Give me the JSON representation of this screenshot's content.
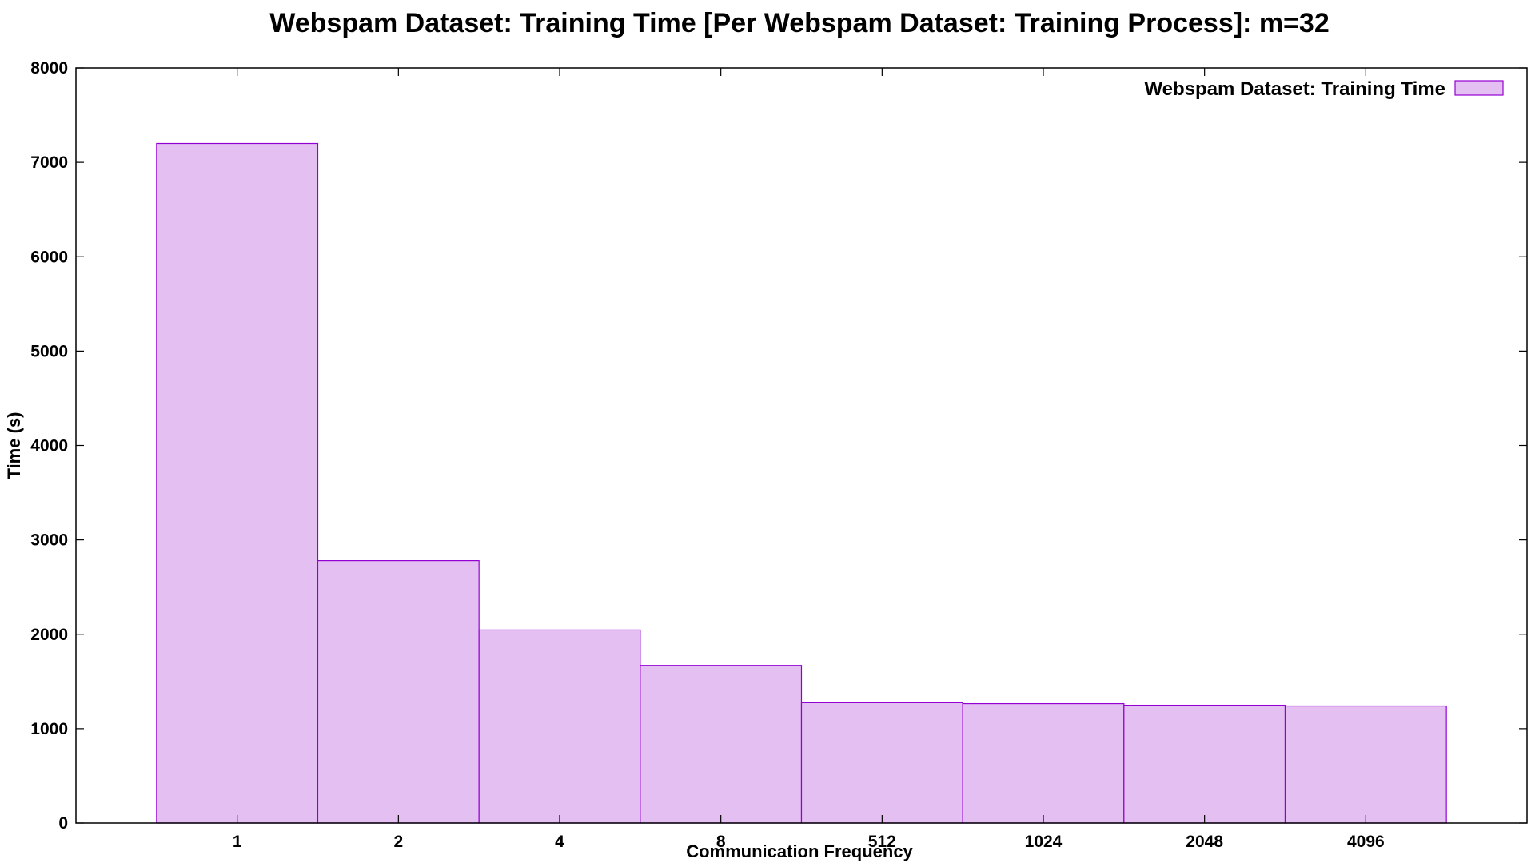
{
  "chart_data": {
    "type": "bar",
    "title": "Webspam Dataset: Training Time [Per Webspam Dataset: Training Process]: m=32",
    "xlabel": "Communication Frequency",
    "ylabel": "Time (s)",
    "categories": [
      "1",
      "2",
      "4",
      "8",
      "512",
      "1024",
      "2048",
      "4096"
    ],
    "series": [
      {
        "name": "Webspam Dataset: Training Time",
        "values": [
          7200,
          2780,
          2045,
          1670,
          1275,
          1265,
          1248,
          1240
        ],
        "fill_color": "#e4bff2",
        "stroke_color": "#9400d3"
      }
    ],
    "ylim": [
      0,
      8000
    ],
    "yticks": [
      0,
      1000,
      2000,
      3000,
      4000,
      5000,
      6000,
      7000,
      8000
    ],
    "grid": false,
    "legend_position": "top-right"
  }
}
